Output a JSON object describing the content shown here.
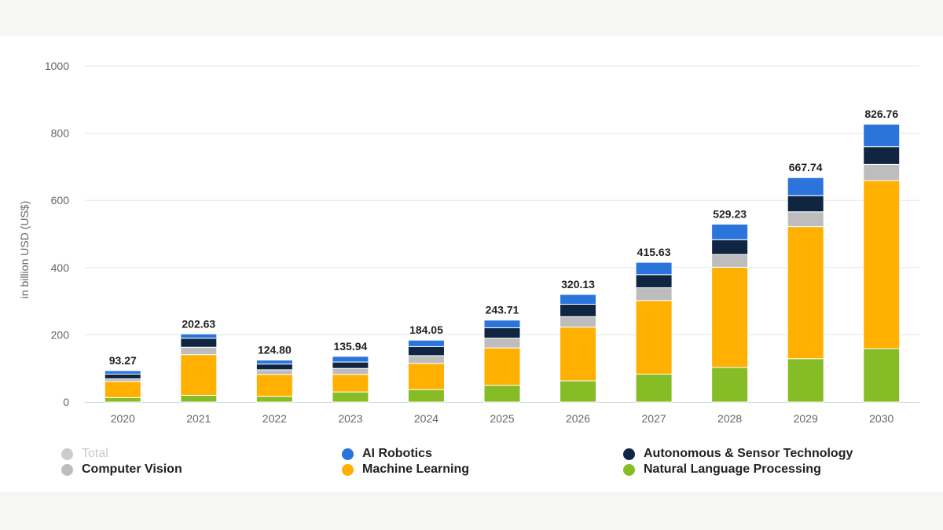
{
  "chart_data": {
    "type": "bar",
    "stacked": true,
    "categories": [
      "2020",
      "2021",
      "2022",
      "2023",
      "2024",
      "2025",
      "2026",
      "2027",
      "2028",
      "2029",
      "2030"
    ],
    "ylabel": "in billion USD (US$)",
    "ylim": [
      0,
      1000
    ],
    "yticks": [
      0,
      200,
      400,
      600,
      800,
      1000
    ],
    "grid": true,
    "legend_position": "bottom",
    "totals": [
      "93.27",
      "202.63",
      "124.80",
      "135.94",
      "184.05",
      "243.71",
      "320.13",
      "415.63",
      "529.23",
      "667.74",
      "826.76"
    ],
    "total_values": [
      93.27,
      202.63,
      124.8,
      135.94,
      184.05,
      243.71,
      320.13,
      415.63,
      529.23,
      667.74,
      826.76
    ],
    "series": [
      {
        "name": "Natural Language Processing",
        "color": "#86bc25",
        "values": [
          13,
          20,
          17,
          30,
          37,
          50,
          63,
          83,
          103,
          129,
          159
        ]
      },
      {
        "name": "Machine Learning",
        "color": "#ffb000",
        "values": [
          48,
          121,
          65,
          52,
          78,
          111,
          160,
          219,
          298,
          393,
          500
        ]
      },
      {
        "name": "Computer Vision",
        "color": "#bdbdbd",
        "values": [
          8,
          22,
          14,
          18,
          23,
          29,
          31,
          38,
          38,
          44,
          48
        ]
      },
      {
        "name": "Autonomous & Sensor Technology",
        "color": "#0f2541",
        "values": [
          14,
          27,
          17,
          19,
          27,
          31,
          37,
          39,
          44,
          48,
          53
        ]
      },
      {
        "name": "AI Robotics",
        "color": "#2a74dc",
        "values": [
          10.27,
          12.63,
          11.8,
          16.94,
          19.05,
          22.71,
          29.13,
          36.63,
          46.23,
          53.74,
          66.76
        ]
      }
    ]
  },
  "legend": {
    "items": [
      {
        "label": "Total",
        "color": "#cccccc",
        "disabled": true
      },
      {
        "label": "AI Robotics",
        "color": "#2a74dc",
        "disabled": false
      },
      {
        "label": "Autonomous & Sensor Technology",
        "color": "#0f2541",
        "disabled": false
      },
      {
        "label": "Computer Vision",
        "color": "#bdbdbd",
        "disabled": false
      },
      {
        "label": "Machine Learning",
        "color": "#ffb000",
        "disabled": false
      },
      {
        "label": "Natural Language Processing",
        "color": "#86bc25",
        "disabled": false
      }
    ]
  }
}
